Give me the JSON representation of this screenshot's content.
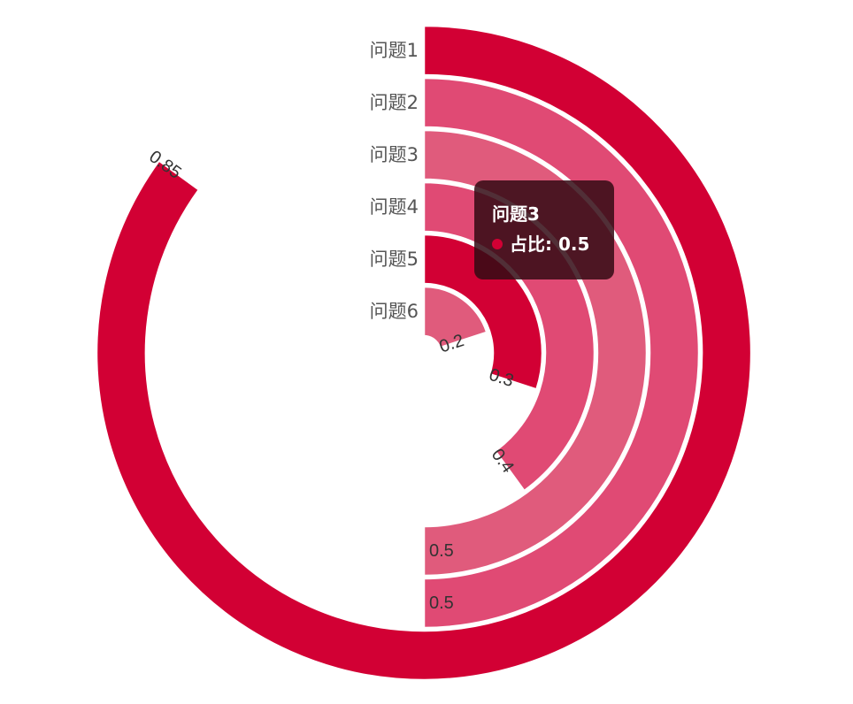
{
  "chart_data": {
    "type": "polar-bar",
    "categories": [
      "问题1",
      "问题2",
      "问题3",
      "问题4",
      "问题5",
      "问题6"
    ],
    "values": [
      0.85,
      0.5,
      0.5,
      0.4,
      0.3,
      0.2
    ],
    "value_labels": [
      "0.85",
      "0.5",
      "0.5",
      "0.4",
      "0.3",
      "0.2"
    ],
    "angle_max": 1,
    "colors": [
      "#d20034",
      "#e04a74",
      "#e05b7c",
      "#e04a74",
      "#d20034",
      "#e05b7c"
    ]
  },
  "tooltip": {
    "title": "问题3",
    "series_label": "占比: 0.5",
    "dot_color": "#d20034"
  }
}
